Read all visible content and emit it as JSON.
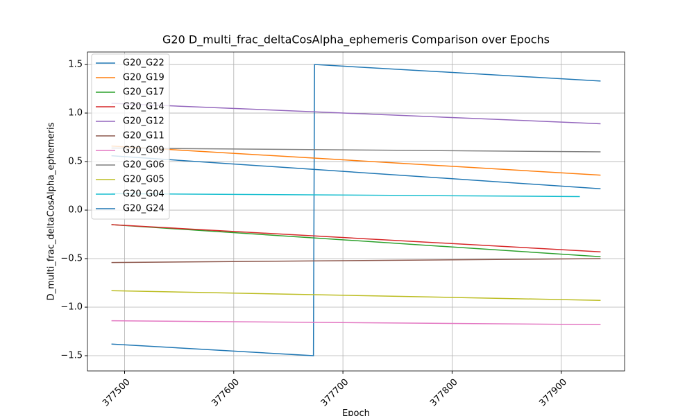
{
  "chart_data": {
    "type": "line",
    "title": "G20 D_multi_frac_deltaCosAlpha_ephemeris Comparison over Epochs",
    "xlabel": "Epoch",
    "ylabel": "D_multi_frac_deltaCosAlpha_ephemeris",
    "series": [
      {
        "name": "G20_G22",
        "color": "#1f77b4",
        "x": [
          377488,
          377673,
          377674,
          377936
        ],
        "values": [
          -1.38,
          -1.5,
          1.5,
          1.33
        ]
      },
      {
        "name": "G20_G19",
        "color": "#ff7f0e",
        "x": [
          377488,
          377936
        ],
        "values": [
          0.66,
          0.36
        ]
      },
      {
        "name": "G20_G17",
        "color": "#2ca02c",
        "x": [
          377488,
          377936
        ],
        "values": [
          -0.15,
          -0.48
        ]
      },
      {
        "name": "G20_G14",
        "color": "#d62728",
        "x": [
          377488,
          377936
        ],
        "values": [
          -0.15,
          -0.43
        ]
      },
      {
        "name": "G20_G12",
        "color": "#9467bd",
        "x": [
          377488,
          377936
        ],
        "values": [
          1.1,
          0.89
        ]
      },
      {
        "name": "G20_G11",
        "color": "#8c564b",
        "x": [
          377488,
          377936
        ],
        "values": [
          -0.54,
          -0.5
        ]
      },
      {
        "name": "G20_G09",
        "color": "#e377c2",
        "x": [
          377488,
          377936
        ],
        "values": [
          -1.14,
          -1.18
        ]
      },
      {
        "name": "G20_G06",
        "color": "#7f7f7f",
        "x": [
          377488,
          377936
        ],
        "values": [
          0.64,
          0.6
        ]
      },
      {
        "name": "G20_G05",
        "color": "#bcbd22",
        "x": [
          377488,
          377936
        ],
        "values": [
          -0.83,
          -0.93
        ]
      },
      {
        "name": "G20_G04",
        "color": "#17becf",
        "x": [
          377488,
          377917
        ],
        "values": [
          0.17,
          0.14
        ]
      },
      {
        "name": "G20_G24",
        "color": "#1f77b4",
        "x": [
          377488,
          377936
        ],
        "values": [
          0.56,
          0.22
        ]
      }
    ],
    "xlim": [
      377466,
      377958
    ],
    "ylim": [
      -1.657,
      1.629
    ],
    "xticks": [
      377500,
      377600,
      377700,
      377800,
      377900
    ],
    "yticks": [
      {
        "value": -1.5,
        "label": "−1.5"
      },
      {
        "value": -1,
        "label": "−1.0"
      },
      {
        "value": -0.5,
        "label": "−0.5"
      },
      {
        "value": 0,
        "label": "0.0"
      },
      0.5,
      {
        "value": 1,
        "label": "1.0"
      },
      1.5
    ],
    "grid": true,
    "legend": "upper left"
  }
}
